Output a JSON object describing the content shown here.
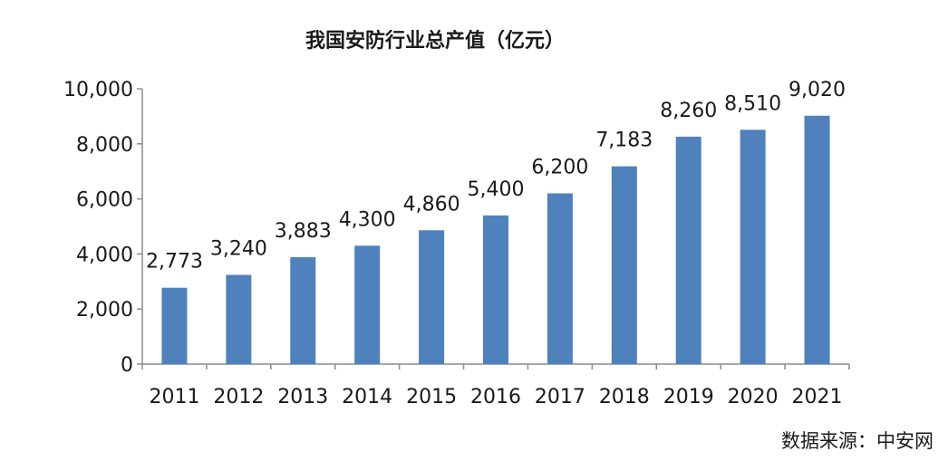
{
  "chart_data": {
    "type": "bar",
    "title": "我国安防行业总产值（亿元）",
    "xlabel": "",
    "ylabel": "",
    "categories": [
      "2011",
      "2012",
      "2013",
      "2014",
      "2015",
      "2016",
      "2017",
      "2018",
      "2019",
      "2020",
      "2021"
    ],
    "values": [
      2773,
      3240,
      3883,
      4300,
      4860,
      5400,
      6200,
      7183,
      8260,
      8510,
      9020
    ],
    "value_labels": [
      "2,773",
      "3,240",
      "3,883",
      "4,300",
      "4,860",
      "5,400",
      "6,200",
      "7,183",
      "8,260",
      "8,510",
      "9,020"
    ],
    "ylim": [
      0,
      10000
    ],
    "yticks": [
      0,
      2000,
      4000,
      6000,
      8000,
      10000
    ],
    "ytick_labels": [
      "0",
      "2,000",
      "4,000",
      "6,000",
      "8,000",
      "10,000"
    ],
    "grid": false,
    "legend": "none",
    "bar_color": "#4f81bd"
  },
  "source": "数据来源：中安网"
}
